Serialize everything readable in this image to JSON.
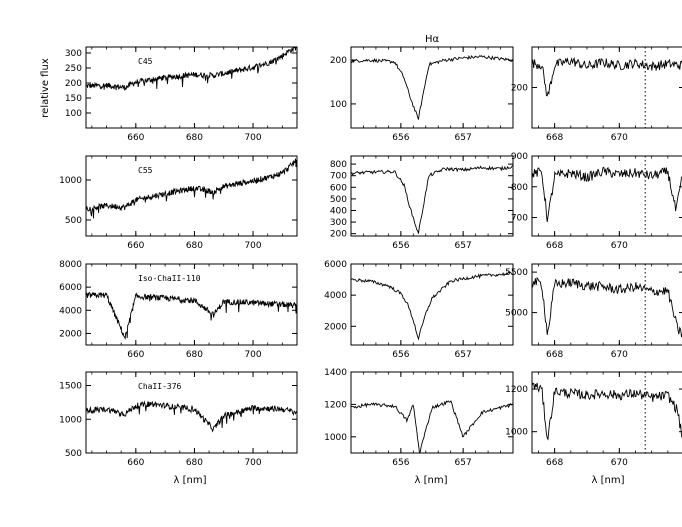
{
  "figure": {
    "ylabel": "relative flux",
    "xlabel": "λ [nm]"
  },
  "chart_data": [
    {
      "type": "line",
      "row": 0,
      "col": 0,
      "star": "C45",
      "xlim": [
        643,
        715
      ],
      "ylim": [
        50,
        320
      ],
      "xticks": [
        660,
        680,
        700
      ],
      "yticks": [
        100,
        150,
        200,
        250,
        300
      ],
      "series": [
        {
          "x": [
            643,
            650,
            656.3,
            660,
            670,
            680,
            686.5,
            690,
            700,
            706,
            710,
            712,
            715
          ],
          "y": [
            190,
            192,
            185,
            203,
            218,
            228,
            225,
            232,
            252,
            270,
            290,
            305,
            320
          ]
        }
      ]
    },
    {
      "type": "line",
      "row": 0,
      "col": 1,
      "title": "Hα",
      "xlim": [
        655.2,
        657.8
      ],
      "ylim": [
        45,
        230
      ],
      "xticks": [
        656,
        657
      ],
      "yticks": [
        100,
        200
      ],
      "series": [
        {
          "x": [
            655.2,
            655.5,
            655.9,
            656.05,
            656.15,
            656.28,
            656.45,
            656.7,
            657.0,
            657.3,
            657.6,
            657.8
          ],
          "y": [
            198,
            200,
            196,
            160,
            115,
            65,
            190,
            200,
            205,
            208,
            203,
            200
          ]
        }
      ]
    },
    {
      "type": "line",
      "row": 0,
      "col": 2,
      "xlim": [
        667.3,
        672.0
      ],
      "ylim": [
        150,
        250
      ],
      "vline": 670.8,
      "xticks": [
        668,
        670
      ],
      "yticks": [
        200
      ],
      "series": [
        {
          "x": [
            667.3,
            667.6,
            667.78,
            668.0,
            668.5,
            669.0,
            669.5,
            670.0,
            670.5,
            671.0,
            671.5,
            672.0
          ],
          "y": [
            230,
            228,
            187,
            228,
            233,
            226,
            231,
            227,
            230,
            226,
            229,
            227
          ]
        }
      ]
    },
    {
      "type": "line",
      "row": 1,
      "col": 0,
      "star": "C55",
      "xlim": [
        643,
        715
      ],
      "ylim": [
        300,
        1300
      ],
      "xticks": [
        660,
        680,
        700
      ],
      "yticks": [
        500,
        1000
      ],
      "series": [
        {
          "x": [
            643,
            650,
            656.3,
            660,
            670,
            680,
            686.5,
            690,
            700,
            706,
            710,
            712,
            715
          ],
          "y": [
            640,
            680,
            660,
            750,
            830,
            900,
            850,
            920,
            990,
            1040,
            1090,
            1150,
            1250
          ]
        }
      ]
    },
    {
      "type": "line",
      "row": 1,
      "col": 1,
      "xlim": [
        655.2,
        657.8
      ],
      "ylim": [
        180,
        870
      ],
      "xticks": [
        656,
        657
      ],
      "yticks": [
        200,
        300,
        400,
        500,
        600,
        700,
        800
      ],
      "series": [
        {
          "x": [
            655.2,
            655.5,
            655.9,
            656.05,
            656.15,
            656.28,
            656.45,
            656.7,
            657.0,
            657.3,
            657.6,
            657.8
          ],
          "y": [
            720,
            730,
            735,
            620,
            420,
            200,
            700,
            760,
            750,
            770,
            760,
            780
          ]
        }
      ]
    },
    {
      "type": "line",
      "row": 1,
      "col": 2,
      "xlim": [
        667.3,
        672.0
      ],
      "ylim": [
        640,
        900
      ],
      "vline": 670.8,
      "xticks": [
        668,
        670
      ],
      "yticks": [
        700,
        800,
        900
      ],
      "series": [
        {
          "x": [
            667.3,
            667.6,
            667.78,
            668.0,
            668.5,
            669.0,
            669.5,
            670.0,
            670.5,
            671.0,
            671.5,
            671.75,
            672.0
          ],
          "y": [
            840,
            850,
            690,
            835,
            845,
            830,
            850,
            840,
            845,
            835,
            850,
            720,
            860
          ]
        }
      ]
    },
    {
      "type": "line",
      "row": 2,
      "col": 0,
      "star": "Iso-ChaII-110",
      "xlim": [
        643,
        715
      ],
      "ylim": [
        1000,
        8000
      ],
      "xticks": [
        660,
        680,
        700
      ],
      "yticks": [
        2000,
        4000,
        6000,
        8000
      ],
      "series": [
        {
          "x": [
            643,
            650,
            656.3,
            660,
            670,
            680,
            686.5,
            690,
            700,
            710,
            715
          ],
          "y": [
            5300,
            5300,
            1600,
            5200,
            5050,
            4850,
            3600,
            4750,
            4650,
            4500,
            4400
          ]
        }
      ]
    },
    {
      "type": "line",
      "row": 2,
      "col": 1,
      "xlim": [
        655.2,
        657.8
      ],
      "ylim": [
        800,
        6000
      ],
      "xticks": [
        656,
        657
      ],
      "yticks": [
        2000,
        4000,
        6000
      ],
      "series": [
        {
          "x": [
            655.2,
            655.5,
            655.8,
            656.0,
            656.1,
            656.2,
            656.28,
            656.4,
            656.5,
            656.8,
            657.2,
            657.8
          ],
          "y": [
            5000,
            4900,
            4600,
            4100,
            3500,
            2400,
            1200,
            2800,
            3800,
            4900,
            5200,
            5400
          ]
        }
      ]
    },
    {
      "type": "line",
      "row": 2,
      "col": 2,
      "xlim": [
        667.3,
        672.0
      ],
      "ylim": [
        4600,
        5600
      ],
      "vline": 670.8,
      "xticks": [
        668,
        670
      ],
      "yticks": [
        5000,
        5500
      ],
      "series": [
        {
          "x": [
            667.3,
            667.6,
            667.78,
            668.0,
            668.5,
            669.0,
            669.5,
            670.0,
            670.5,
            671.0,
            671.5,
            671.8,
            672.0
          ],
          "y": [
            5380,
            5360,
            4720,
            5350,
            5370,
            5330,
            5320,
            5280,
            5320,
            5260,
            5270,
            4800,
            4700
          ]
        }
      ]
    },
    {
      "type": "line",
      "row": 3,
      "col": 0,
      "star": "ChaII-376",
      "xlim": [
        643,
        715
      ],
      "ylim": [
        500,
        1700
      ],
      "xticks": [
        660,
        680,
        700
      ],
      "yticks": [
        500,
        1000,
        1500
      ],
      "series": [
        {
          "x": [
            643,
            650,
            656.3,
            660,
            665,
            670,
            680,
            686.5,
            690,
            700,
            710,
            715
          ],
          "y": [
            1130,
            1150,
            1080,
            1200,
            1230,
            1200,
            1150,
            850,
            1050,
            1170,
            1150,
            1100
          ]
        }
      ]
    },
    {
      "type": "line",
      "row": 3,
      "col": 1,
      "xlim": [
        655.2,
        657.8
      ],
      "ylim": [
        900,
        1400
      ],
      "xticks": [
        656,
        657
      ],
      "yticks": [
        1000,
        1200,
        1400
      ],
      "series": [
        {
          "x": [
            655.2,
            655.5,
            655.9,
            656.1,
            656.2,
            656.3,
            656.5,
            656.8,
            657.0,
            657.3,
            657.6,
            657.8
          ],
          "y": [
            1180,
            1200,
            1190,
            1100,
            1200,
            900,
            1180,
            1220,
            1000,
            1150,
            1180,
            1200
          ]
        }
      ]
    },
    {
      "type": "line",
      "row": 3,
      "col": 2,
      "xlim": [
        667.3,
        672.0
      ],
      "ylim": [
        900,
        1280
      ],
      "vline": 670.8,
      "xticks": [
        668,
        670
      ],
      "yticks": [
        1000,
        1200
      ],
      "series": [
        {
          "x": [
            667.3,
            667.6,
            667.78,
            668.0,
            668.5,
            669.0,
            669.5,
            670.0,
            670.5,
            671.0,
            671.5,
            671.8,
            672.0
          ],
          "y": [
            1220,
            1200,
            960,
            1190,
            1180,
            1170,
            1180,
            1170,
            1180,
            1160,
            1170,
            1100,
            920
          ]
        }
      ]
    }
  ]
}
